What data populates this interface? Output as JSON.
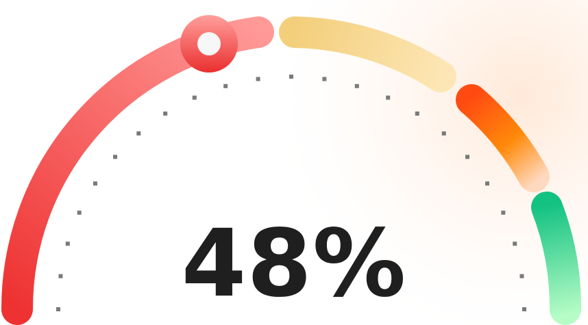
{
  "gauge": {
    "value_percent": 48,
    "readout": "48%",
    "segments": [
      {
        "name": "red",
        "colors": [
          "#ee3131",
          "#ff9a98"
        ]
      },
      {
        "name": "yellow",
        "colors": [
          "#f3cf7c",
          "#fde6b5"
        ]
      },
      {
        "name": "orange",
        "colors": [
          "#ff4b12",
          "#ff8a0a",
          "#ffd9bf"
        ]
      },
      {
        "name": "green",
        "colors": [
          "#13c281",
          "#b6fcc6"
        ]
      }
    ],
    "knob": {
      "ring_color": "#ee3333",
      "center_color": "#f7f7f7"
    },
    "tick_color": "#7a7a7a",
    "text_color": "#1f1f1f"
  }
}
